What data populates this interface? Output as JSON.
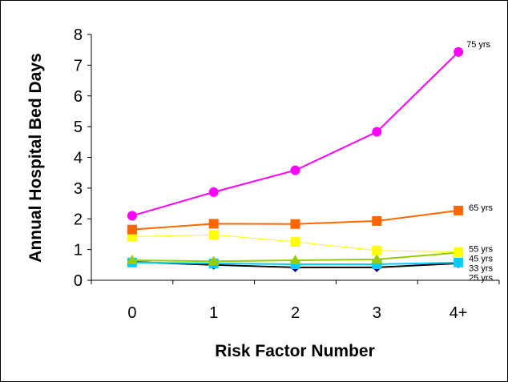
{
  "chart_data": {
    "type": "line",
    "title": "",
    "xlabel": "Risk Factor Number",
    "ylabel": "Annual Hospital Bed Days",
    "categories": [
      "0",
      "1",
      "2",
      "3",
      "4+"
    ],
    "ylim": [
      0,
      8
    ],
    "yticks": [
      0,
      1,
      2,
      3,
      4,
      5,
      6,
      7,
      8
    ],
    "grid": false,
    "legend": "labels at line ends",
    "series": [
      {
        "name": "75 yrs",
        "values": [
          2.1,
          2.87,
          3.58,
          4.83,
          7.43
        ],
        "color": "#ff00ff",
        "marker": "circle"
      },
      {
        "name": "65 yrs",
        "values": [
          1.65,
          1.84,
          1.83,
          1.93,
          2.27
        ],
        "color": "#ff6600",
        "marker": "square"
      },
      {
        "name": "55 yrs",
        "values": [
          1.42,
          1.48,
          1.25,
          0.97,
          0.92
        ],
        "color": "#ffff00",
        "marker": "square"
      },
      {
        "name": "45 yrs",
        "values": [
          0.65,
          0.62,
          0.65,
          0.68,
          0.9
        ],
        "color": "#99cc00",
        "marker": "triangle"
      },
      {
        "name": "33 yrs",
        "values": [
          0.58,
          0.55,
          0.52,
          0.52,
          0.58
        ],
        "color": "#00ccff",
        "marker": "square"
      },
      {
        "name": "25 yrs",
        "values": [
          0.6,
          0.5,
          0.42,
          0.42,
          0.55
        ],
        "color": "#000080",
        "marker": "diamond"
      }
    ]
  }
}
